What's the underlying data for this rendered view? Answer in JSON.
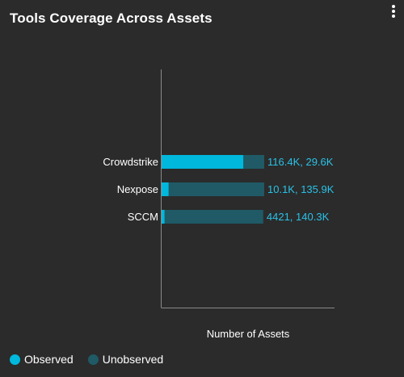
{
  "widget": {
    "title": "Tools Coverage Across Assets",
    "menu_icon": "kebab-menu-icon"
  },
  "colors": {
    "observed": "#00b7dc",
    "unobserved": "#1f5a66",
    "axis": "#8a8a8a",
    "value_label": "#29c2e8"
  },
  "legend": {
    "items": [
      {
        "label": "Observed",
        "color": "#00b7dc"
      },
      {
        "label": "Unobserved",
        "color": "#1f5a66"
      }
    ]
  },
  "chart_data": {
    "type": "bar",
    "orientation": "horizontal",
    "stacked": true,
    "title": "",
    "xlabel": "Number of Assets",
    "ylabel": "",
    "categories": [
      "Crowdstrike",
      "Nexpose",
      "SCCM"
    ],
    "series": [
      {
        "name": "Observed",
        "values": [
          116400,
          10100,
          4421
        ]
      },
      {
        "name": "Unobserved",
        "values": [
          29600,
          135900,
          140300
        ]
      }
    ],
    "value_labels": [
      "116.4K, 29.6K",
      "10.1K, 135.9K",
      "4421, 140.3K"
    ],
    "xlim": [
      0,
      146000
    ],
    "grid": false,
    "legend_position": "bottom-left"
  }
}
